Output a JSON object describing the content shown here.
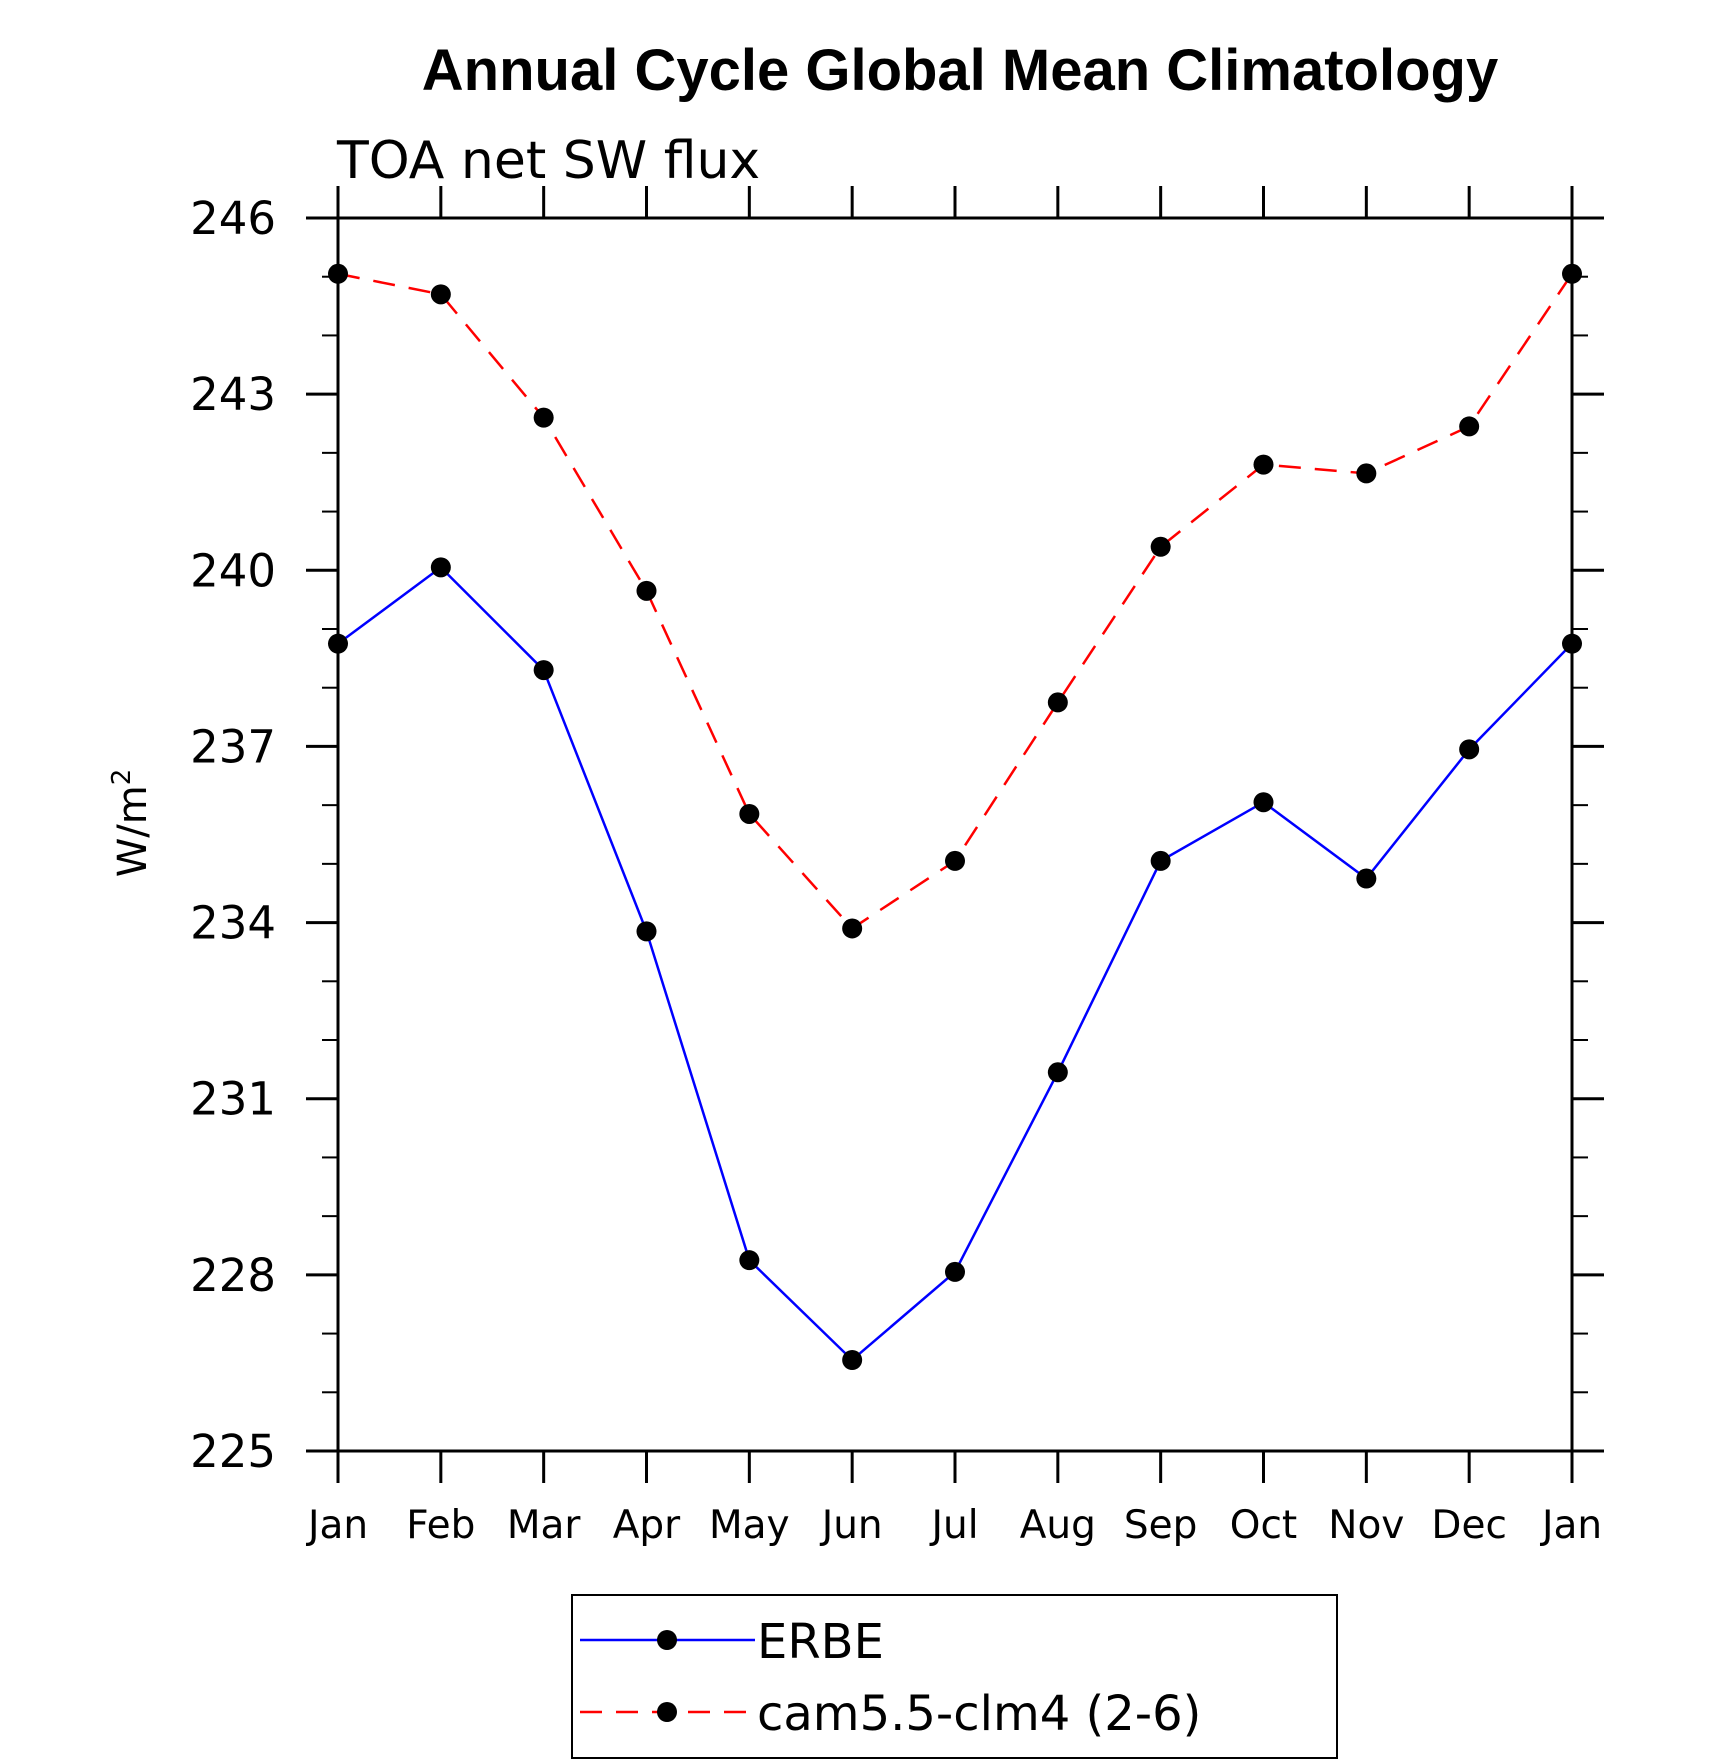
{
  "chart_data": {
    "type": "line",
    "title": "Annual Cycle Global Mean Climatology",
    "subtitle": "TOA net SW flux",
    "ylabel_base": "W/m",
    "ylabel_sup": "2",
    "xlabel": "",
    "categories": [
      "Jan",
      "Feb",
      "Mar",
      "Apr",
      "May",
      "Jun",
      "Jul",
      "Aug",
      "Sep",
      "Oct",
      "Nov",
      "Dec",
      "Jan"
    ],
    "ylim": [
      225,
      246
    ],
    "yticks": [
      225,
      228,
      231,
      234,
      237,
      240,
      243,
      246
    ],
    "grid": false,
    "legend_position": "bottom-center",
    "series": [
      {
        "name": "ERBE",
        "color": "#0000ff",
        "line_style": "solid",
        "marker": "filled-circle",
        "values": [
          238.75,
          240.05,
          238.3,
          233.85,
          228.25,
          226.55,
          228.05,
          231.45,
          235.05,
          236.05,
          234.75,
          236.95,
          238.75
        ]
      },
      {
        "name": "cam5.5-clm4 (2-6)",
        "color": "#ff0000",
        "line_style": "dashed",
        "marker": "filled-circle",
        "values": [
          245.05,
          244.7,
          242.6,
          239.65,
          235.85,
          233.9,
          235.05,
          237.75,
          240.4,
          241.8,
          241.65,
          242.45,
          245.05
        ]
      }
    ]
  }
}
